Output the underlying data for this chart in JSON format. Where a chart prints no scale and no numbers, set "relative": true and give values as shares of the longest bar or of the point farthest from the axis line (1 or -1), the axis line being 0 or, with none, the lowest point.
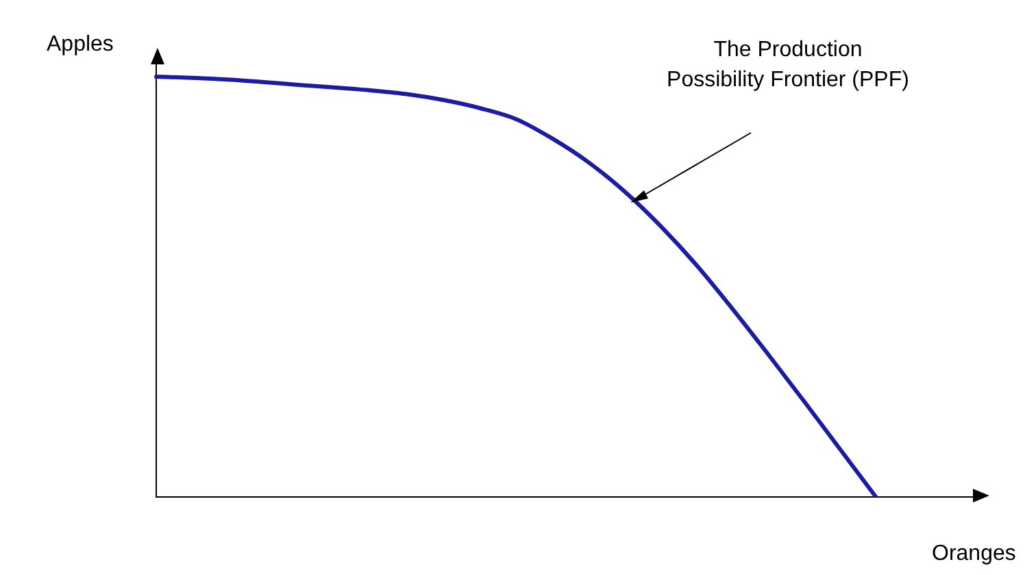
{
  "chart_data": {
    "type": "line",
    "xlabel": "Oranges",
    "ylabel": "Apples",
    "annotations": [
      "The Production Possibility Frontier (PPF)"
    ],
    "categories": [
      null,
      null,
      null,
      null,
      null,
      null,
      null,
      null,
      null,
      null,
      null,
      null,
      null,
      null,
      null,
      null,
      null,
      null,
      null,
      null,
      null,
      null,
      null,
      null
    ],
    "values": [
      1.0,
      0.997,
      0.993,
      0.987,
      0.98,
      0.974,
      0.967,
      0.958,
      0.944,
      0.925,
      0.899,
      0.853,
      0.797,
      0.728,
      0.646,
      0.553,
      0.449,
      0.34,
      0.228,
      0.114,
      0,
      null,
      null,
      null
    ],
    "color": "#1c1ca3",
    "relative": true,
    "tick_labels": false,
    "grid": false,
    "marker": "none",
    "line_style": "solid"
  }
}
